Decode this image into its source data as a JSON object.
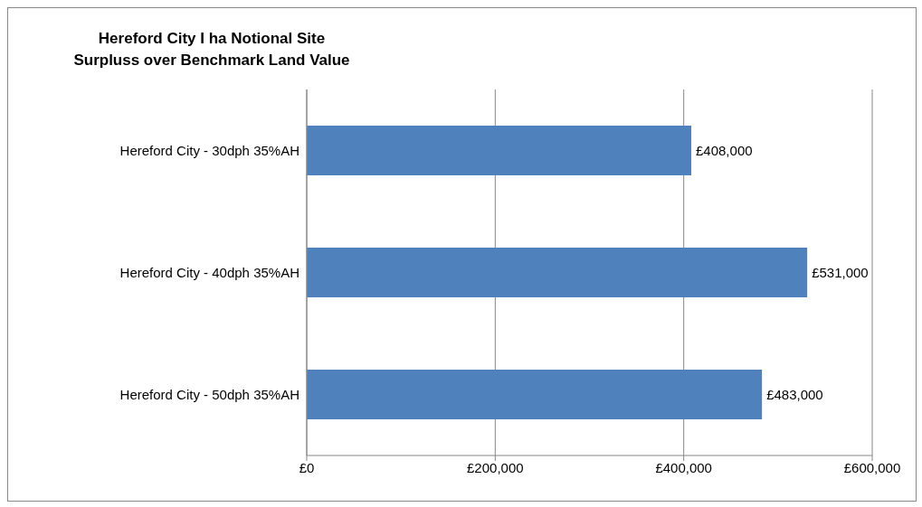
{
  "chart_data": {
    "type": "bar",
    "orientation": "horizontal",
    "title": "Hereford City I ha Notional Site\nSurpluss over Benchmark Land Value",
    "categories": [
      "Hereford City - 30dph 35%AH",
      "Hereford City - 40dph 35%AH",
      "Hereford City - 50dph 35%AH"
    ],
    "values": [
      408000,
      531000,
      483000
    ],
    "color": "#4f81bd",
    "value_labels": [
      "£408,000",
      "£531,000",
      "£483,000"
    ],
    "xlim": [
      0,
      600000
    ],
    "xticks": [
      {
        "value": 0,
        "label": "£0"
      },
      {
        "value": 200000,
        "label": "£200,000"
      },
      {
        "value": 400000,
        "label": "£400,000"
      },
      {
        "value": 600000,
        "label": "£600,000"
      }
    ],
    "grid": "x",
    "legend": false
  }
}
